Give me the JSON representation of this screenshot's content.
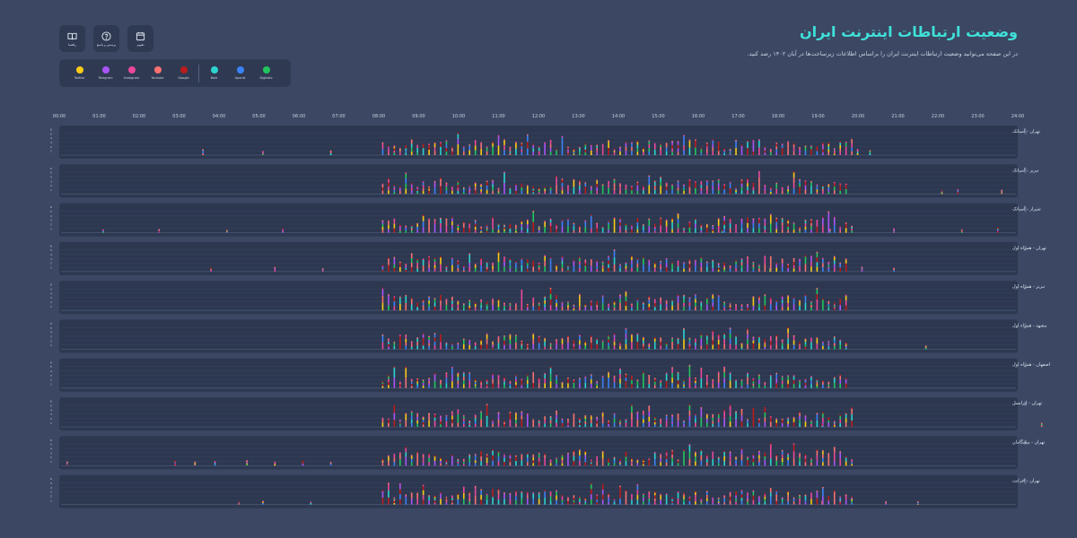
{
  "header": {
    "title": "وضعیت ارتباطات اینترنت ایران",
    "subtitle": "در این صفحه می‌توانید وضعیت ارتباطات اینترنت ایران را براساس اطلاعات زیرساخت‌ها در آبان ۱۴۰۲ رصد کنید."
  },
  "toolbar": [
    {
      "key": "calendar",
      "label": "تقویم",
      "icon": "calendar-icon"
    },
    {
      "key": "help",
      "label": "پرسش و پاسخ",
      "icon": "help-icon"
    },
    {
      "key": "guide",
      "label": "راهنما",
      "icon": "book-icon"
    }
  ],
  "colors": {
    "background": "#3b4763",
    "panel": "#2f3a52",
    "title": "#3fe0d8",
    "tick": "#c9d2e0"
  },
  "legend": [
    {
      "label": "Digikala",
      "color": "#22c55e"
    },
    {
      "label": "Aparat",
      "color": "#3b82f6"
    },
    {
      "label": "Bale",
      "color": "#2dd4cf"
    },
    {
      "label": "Google",
      "color": "#b91c1c"
    },
    {
      "label": "Youtube",
      "color": "#f87171"
    },
    {
      "label": "Instagram",
      "color": "#ec4899"
    },
    {
      "label": "Telegram",
      "color": "#a855f7"
    },
    {
      "label": "Twitter",
      "color": "#facc15"
    }
  ],
  "chart_data": {
    "type": "bar",
    "title": "",
    "xlabel": "",
    "ylabel": "",
    "x_ticks": [
      "00:00",
      "01:00",
      "02:00",
      "03:00",
      "04:00",
      "05:00",
      "06:00",
      "07:00",
      "08:00",
      "09:00",
      "10:00",
      "11:00",
      "12:00",
      "13:00",
      "14:00",
      "15:00",
      "16:00",
      "17:00",
      "18:00",
      "19:00",
      "20:00",
      "21:00",
      "22:00",
      "23:00",
      "24:00"
    ],
    "y_ticks": [
      "0",
      "1",
      "2",
      "3",
      "4",
      "5",
      "6"
    ],
    "ylim": [
      0,
      6
    ],
    "grid": true,
    "series_colors": [
      "#22c55e",
      "#3b82f6",
      "#2dd4cf",
      "#b91c1c",
      "#f87171",
      "#ec4899",
      "#a855f7",
      "#facc15"
    ],
    "rows": [
      {
        "name": "تهران - آسیاتک",
        "bursts": [
          [
            8.1,
            20.0
          ]
        ],
        "sparse": [
          [
            3.6,
            1.2
          ],
          [
            5.1,
            0.8
          ],
          [
            6.8,
            0.9
          ],
          [
            20.3,
            1.0
          ]
        ]
      },
      {
        "name": "تبریز - آسیاتک",
        "bursts": [
          [
            8.1,
            19.8
          ]
        ],
        "sparse": [
          [
            22.1,
            0.7
          ],
          [
            23.6,
            0.8
          ],
          [
            22.5,
            0.9
          ]
        ]
      },
      {
        "name": "شیراز - آسیاتک",
        "bursts": [
          [
            8.1,
            19.9
          ]
        ],
        "sparse": [
          [
            1.1,
            0.6
          ],
          [
            2.5,
            0.7
          ],
          [
            4.2,
            0.5
          ],
          [
            5.6,
            0.9
          ],
          [
            16.6,
            0.5
          ],
          [
            19.3,
            0.8
          ],
          [
            20.9,
            0.9
          ],
          [
            22.6,
            0.6
          ],
          [
            23.5,
            1.1
          ]
        ]
      },
      {
        "name": "تهران - همراه اول",
        "bursts": [
          [
            8.1,
            19.8
          ]
        ],
        "sparse": [
          [
            3.8,
            0.7
          ],
          [
            5.4,
            0.9
          ],
          [
            6.6,
            0.6
          ],
          [
            17.8,
            0.8
          ],
          [
            20.1,
            1.0
          ],
          [
            20.9,
            0.7
          ]
        ]
      },
      {
        "name": "تبریز - همراه اول",
        "bursts": [
          [
            8.1,
            19.8
          ]
        ],
        "sparse": []
      },
      {
        "name": "مشهد - همراه اول",
        "bursts": [
          [
            8.1,
            19.8
          ]
        ],
        "sparse": [
          [
            21.7,
            0.7
          ]
        ]
      },
      {
        "name": "اصفهان - همراه اول",
        "bursts": [
          [
            8.1,
            19.8
          ]
        ],
        "sparse": []
      },
      {
        "name": "تهران - ایرانسل",
        "bursts": [
          [
            8.1,
            19.9
          ]
        ],
        "sparse": [
          [
            19.1,
            0.6
          ],
          [
            24.6,
            0.8
          ]
        ]
      },
      {
        "name": "تهران - پیشگامان",
        "bursts": [
          [
            8.1,
            19.9
          ]
        ],
        "sparse": [
          [
            0.2,
            0.8
          ],
          [
            2.9,
            1.0
          ],
          [
            3.4,
            0.8
          ],
          [
            3.9,
            0.9
          ],
          [
            4.7,
            1.1
          ],
          [
            5.4,
            0.8
          ],
          [
            6.1,
            1.0
          ],
          [
            6.8,
            0.7
          ]
        ]
      },
      {
        "name": "تهران - افرانت",
        "bursts": [
          [
            8.1,
            19.9
          ]
        ],
        "sparse": [
          [
            4.5,
            0.6
          ],
          [
            5.1,
            0.7
          ],
          [
            6.3,
            0.5
          ],
          [
            19.1,
            0.7
          ],
          [
            20.7,
            0.6
          ],
          [
            21.5,
            0.6
          ]
        ]
      }
    ]
  }
}
